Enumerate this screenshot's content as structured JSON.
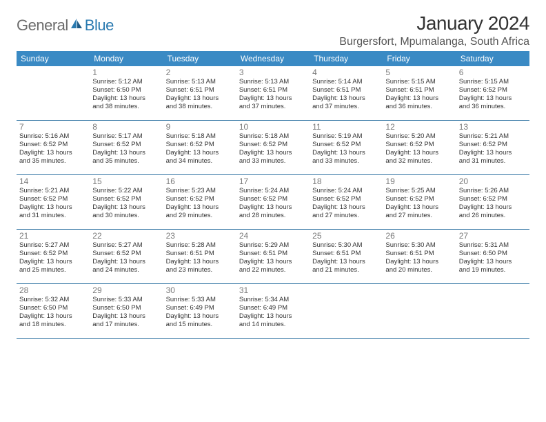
{
  "brand": {
    "text_gray": "General",
    "text_blue": "Blue",
    "gray_color": "#6b6b6b",
    "blue_color": "#2a7ab0"
  },
  "title": "January 2024",
  "location": "Burgersfort, Mpumalanga, South Africa",
  "header_bg": "#3a8ac4",
  "rule_color": "#2a6fa0",
  "text_color": "#333333",
  "background_color": "#ffffff",
  "day_headers": [
    "Sunday",
    "Monday",
    "Tuesday",
    "Wednesday",
    "Thursday",
    "Friday",
    "Saturday"
  ],
  "weeks": [
    [
      null,
      {
        "n": "1",
        "sr": "Sunrise: 5:12 AM",
        "ss": "Sunset: 6:50 PM",
        "d1": "Daylight: 13 hours",
        "d2": "and 38 minutes."
      },
      {
        "n": "2",
        "sr": "Sunrise: 5:13 AM",
        "ss": "Sunset: 6:51 PM",
        "d1": "Daylight: 13 hours",
        "d2": "and 38 minutes."
      },
      {
        "n": "3",
        "sr": "Sunrise: 5:13 AM",
        "ss": "Sunset: 6:51 PM",
        "d1": "Daylight: 13 hours",
        "d2": "and 37 minutes."
      },
      {
        "n": "4",
        "sr": "Sunrise: 5:14 AM",
        "ss": "Sunset: 6:51 PM",
        "d1": "Daylight: 13 hours",
        "d2": "and 37 minutes."
      },
      {
        "n": "5",
        "sr": "Sunrise: 5:15 AM",
        "ss": "Sunset: 6:51 PM",
        "d1": "Daylight: 13 hours",
        "d2": "and 36 minutes."
      },
      {
        "n": "6",
        "sr": "Sunrise: 5:15 AM",
        "ss": "Sunset: 6:52 PM",
        "d1": "Daylight: 13 hours",
        "d2": "and 36 minutes."
      }
    ],
    [
      {
        "n": "7",
        "sr": "Sunrise: 5:16 AM",
        "ss": "Sunset: 6:52 PM",
        "d1": "Daylight: 13 hours",
        "d2": "and 35 minutes."
      },
      {
        "n": "8",
        "sr": "Sunrise: 5:17 AM",
        "ss": "Sunset: 6:52 PM",
        "d1": "Daylight: 13 hours",
        "d2": "and 35 minutes."
      },
      {
        "n": "9",
        "sr": "Sunrise: 5:18 AM",
        "ss": "Sunset: 6:52 PM",
        "d1": "Daylight: 13 hours",
        "d2": "and 34 minutes."
      },
      {
        "n": "10",
        "sr": "Sunrise: 5:18 AM",
        "ss": "Sunset: 6:52 PM",
        "d1": "Daylight: 13 hours",
        "d2": "and 33 minutes."
      },
      {
        "n": "11",
        "sr": "Sunrise: 5:19 AM",
        "ss": "Sunset: 6:52 PM",
        "d1": "Daylight: 13 hours",
        "d2": "and 33 minutes."
      },
      {
        "n": "12",
        "sr": "Sunrise: 5:20 AM",
        "ss": "Sunset: 6:52 PM",
        "d1": "Daylight: 13 hours",
        "d2": "and 32 minutes."
      },
      {
        "n": "13",
        "sr": "Sunrise: 5:21 AM",
        "ss": "Sunset: 6:52 PM",
        "d1": "Daylight: 13 hours",
        "d2": "and 31 minutes."
      }
    ],
    [
      {
        "n": "14",
        "sr": "Sunrise: 5:21 AM",
        "ss": "Sunset: 6:52 PM",
        "d1": "Daylight: 13 hours",
        "d2": "and 31 minutes."
      },
      {
        "n": "15",
        "sr": "Sunrise: 5:22 AM",
        "ss": "Sunset: 6:52 PM",
        "d1": "Daylight: 13 hours",
        "d2": "and 30 minutes."
      },
      {
        "n": "16",
        "sr": "Sunrise: 5:23 AM",
        "ss": "Sunset: 6:52 PM",
        "d1": "Daylight: 13 hours",
        "d2": "and 29 minutes."
      },
      {
        "n": "17",
        "sr": "Sunrise: 5:24 AM",
        "ss": "Sunset: 6:52 PM",
        "d1": "Daylight: 13 hours",
        "d2": "and 28 minutes."
      },
      {
        "n": "18",
        "sr": "Sunrise: 5:24 AM",
        "ss": "Sunset: 6:52 PM",
        "d1": "Daylight: 13 hours",
        "d2": "and 27 minutes."
      },
      {
        "n": "19",
        "sr": "Sunrise: 5:25 AM",
        "ss": "Sunset: 6:52 PM",
        "d1": "Daylight: 13 hours",
        "d2": "and 27 minutes."
      },
      {
        "n": "20",
        "sr": "Sunrise: 5:26 AM",
        "ss": "Sunset: 6:52 PM",
        "d1": "Daylight: 13 hours",
        "d2": "and 26 minutes."
      }
    ],
    [
      {
        "n": "21",
        "sr": "Sunrise: 5:27 AM",
        "ss": "Sunset: 6:52 PM",
        "d1": "Daylight: 13 hours",
        "d2": "and 25 minutes."
      },
      {
        "n": "22",
        "sr": "Sunrise: 5:27 AM",
        "ss": "Sunset: 6:52 PM",
        "d1": "Daylight: 13 hours",
        "d2": "and 24 minutes."
      },
      {
        "n": "23",
        "sr": "Sunrise: 5:28 AM",
        "ss": "Sunset: 6:51 PM",
        "d1": "Daylight: 13 hours",
        "d2": "and 23 minutes."
      },
      {
        "n": "24",
        "sr": "Sunrise: 5:29 AM",
        "ss": "Sunset: 6:51 PM",
        "d1": "Daylight: 13 hours",
        "d2": "and 22 minutes."
      },
      {
        "n": "25",
        "sr": "Sunrise: 5:30 AM",
        "ss": "Sunset: 6:51 PM",
        "d1": "Daylight: 13 hours",
        "d2": "and 21 minutes."
      },
      {
        "n": "26",
        "sr": "Sunrise: 5:30 AM",
        "ss": "Sunset: 6:51 PM",
        "d1": "Daylight: 13 hours",
        "d2": "and 20 minutes."
      },
      {
        "n": "27",
        "sr": "Sunrise: 5:31 AM",
        "ss": "Sunset: 6:50 PM",
        "d1": "Daylight: 13 hours",
        "d2": "and 19 minutes."
      }
    ],
    [
      {
        "n": "28",
        "sr": "Sunrise: 5:32 AM",
        "ss": "Sunset: 6:50 PM",
        "d1": "Daylight: 13 hours",
        "d2": "and 18 minutes."
      },
      {
        "n": "29",
        "sr": "Sunrise: 5:33 AM",
        "ss": "Sunset: 6:50 PM",
        "d1": "Daylight: 13 hours",
        "d2": "and 17 minutes."
      },
      {
        "n": "30",
        "sr": "Sunrise: 5:33 AM",
        "ss": "Sunset: 6:49 PM",
        "d1": "Daylight: 13 hours",
        "d2": "and 15 minutes."
      },
      {
        "n": "31",
        "sr": "Sunrise: 5:34 AM",
        "ss": "Sunset: 6:49 PM",
        "d1": "Daylight: 13 hours",
        "d2": "and 14 minutes."
      },
      null,
      null,
      null
    ]
  ]
}
